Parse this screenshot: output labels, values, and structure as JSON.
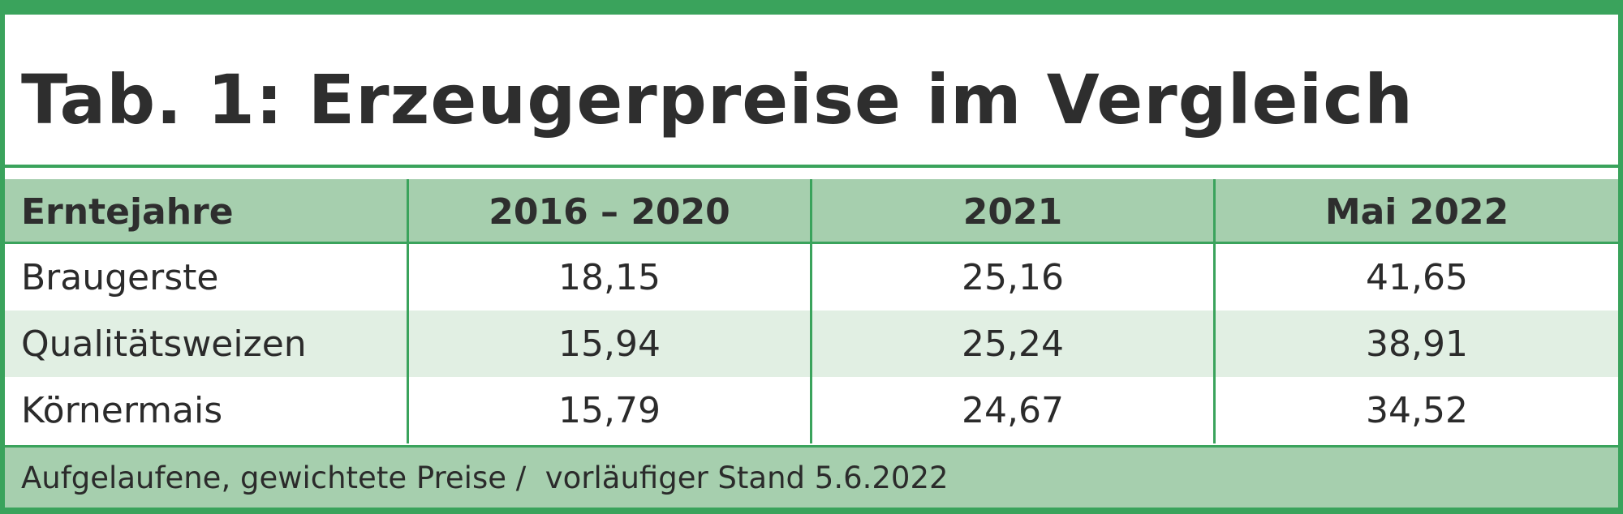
{
  "title": "Tab. 1: Erzeugerpreise im Vergleich",
  "table": {
    "headers": [
      "Erntejahre",
      "2016 – 2020",
      "2021",
      "Mai 2022"
    ],
    "rows": [
      {
        "label": "Braugerste",
        "values": [
          "18,15",
          "25,16",
          "41,65"
        ]
      },
      {
        "label": "Qualitätsweizen",
        "values": [
          "15,94",
          "25,24",
          "38,91"
        ]
      },
      {
        "label": "Körnermais",
        "values": [
          "15,79",
          "24,67",
          "34,52"
        ]
      }
    ]
  },
  "footer": "Aufgelaufene, gewichtete Preise /  vorläufiger Stand 5.6.2022",
  "colors": {
    "border_green": "#3aa35c",
    "header_fill": "#a6cfae",
    "alt_row_fill": "#e1efe3"
  }
}
